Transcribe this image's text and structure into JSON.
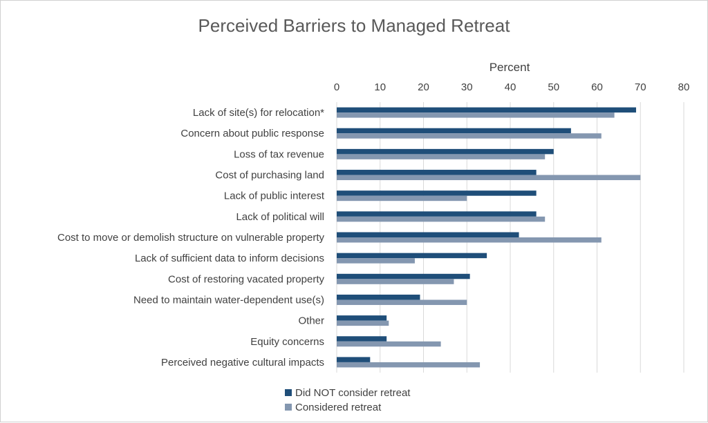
{
  "chart_data": {
    "type": "bar",
    "orientation": "horizontal",
    "title": "Perceived Barriers to Managed Retreat",
    "xlabel": "Percent",
    "ylabel": "",
    "xlim": [
      0,
      80
    ],
    "xticks": [
      0,
      10,
      20,
      30,
      40,
      50,
      60,
      70,
      80
    ],
    "grid": true,
    "legend_position": "bottom-left",
    "categories": [
      "Lack of site(s) for relocation*",
      "Concern about public response",
      "Loss of tax revenue",
      "Cost of purchasing land",
      "Lack of public interest",
      "Lack of political will",
      "Cost to move or demolish structure on vulnerable property",
      "Lack of sufficient data to inform decisions",
      "Cost of restoring vacated property",
      "Need to maintain water-dependent use(s)",
      "Other",
      "Equity concerns",
      "Perceived negative cultural impacts"
    ],
    "series": [
      {
        "name": "Did NOT consider retreat",
        "color": "#1f4e79",
        "values": [
          69,
          54,
          50,
          46,
          46,
          46,
          42,
          34.6,
          30.7,
          19.2,
          11.5,
          11.5,
          7.7
        ]
      },
      {
        "name": "Considered retreat",
        "color": "#8497b0",
        "values": [
          64,
          61,
          48,
          70,
          30,
          48,
          61,
          18,
          27,
          30,
          12,
          24,
          33
        ]
      }
    ]
  }
}
